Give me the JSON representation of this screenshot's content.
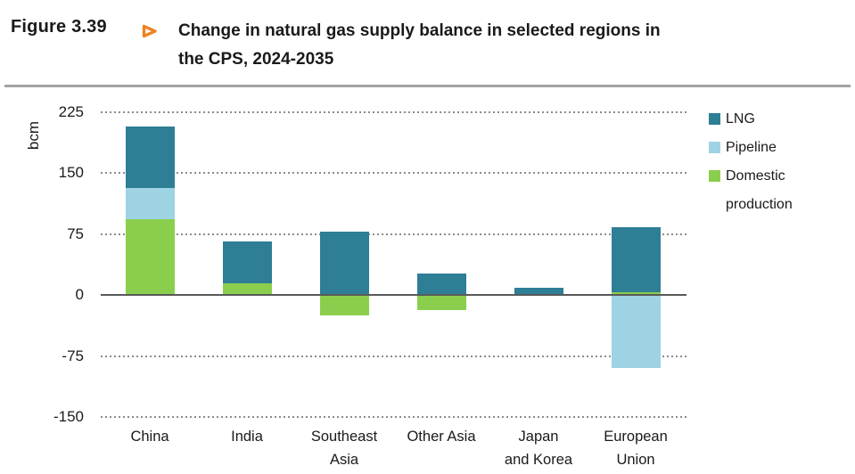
{
  "figure": {
    "label": "Figure 3.39",
    "title_line1": "Change in natural gas supply balance in selected regions in",
    "title_line2": "the CPS, 2024-2035"
  },
  "chart_data": {
    "type": "bar",
    "stacked": true,
    "title": "Change in natural gas supply balance in selected regions in the CPS, 2024-2035",
    "ylabel": "bcm",
    "categories": [
      "China",
      "India",
      "Southeast Asia",
      "Other Asia",
      "Japan and Korea",
      "European Union"
    ],
    "category_display_lines": [
      [
        "China"
      ],
      [
        "India"
      ],
      [
        "Southeast",
        "Asia"
      ],
      [
        "Other Asia"
      ],
      [
        "Japan",
        "and Korea"
      ],
      [
        "European",
        "Union"
      ]
    ],
    "series": [
      {
        "name": "LNG",
        "color": "#2e7e95",
        "values": [
          75,
          51,
          78,
          27,
          9,
          80
        ]
      },
      {
        "name": "Pipeline",
        "color": "#9ed3e3",
        "values": [
          39,
          0,
          0,
          0,
          0,
          -90
        ]
      },
      {
        "name": "Domestic production",
        "color": "#8bce4e",
        "values": [
          93,
          15,
          -25,
          -18,
          0,
          4
        ]
      }
    ],
    "stack_order_bottom_to_top": [
      "Domestic production",
      "Pipeline",
      "LNG"
    ],
    "y_axis": {
      "ticks": [
        225,
        150,
        75,
        0,
        -75,
        -150
      ],
      "min": -150,
      "max": 225,
      "gridlines": "dotted"
    },
    "legend_position": "right"
  },
  "colors": {
    "accent_orange": "#ee8220",
    "grid_dots": "#8c8c8c",
    "zero_line": "#595959",
    "divider": "#a3a3a3",
    "text": "#1a1a1a"
  }
}
